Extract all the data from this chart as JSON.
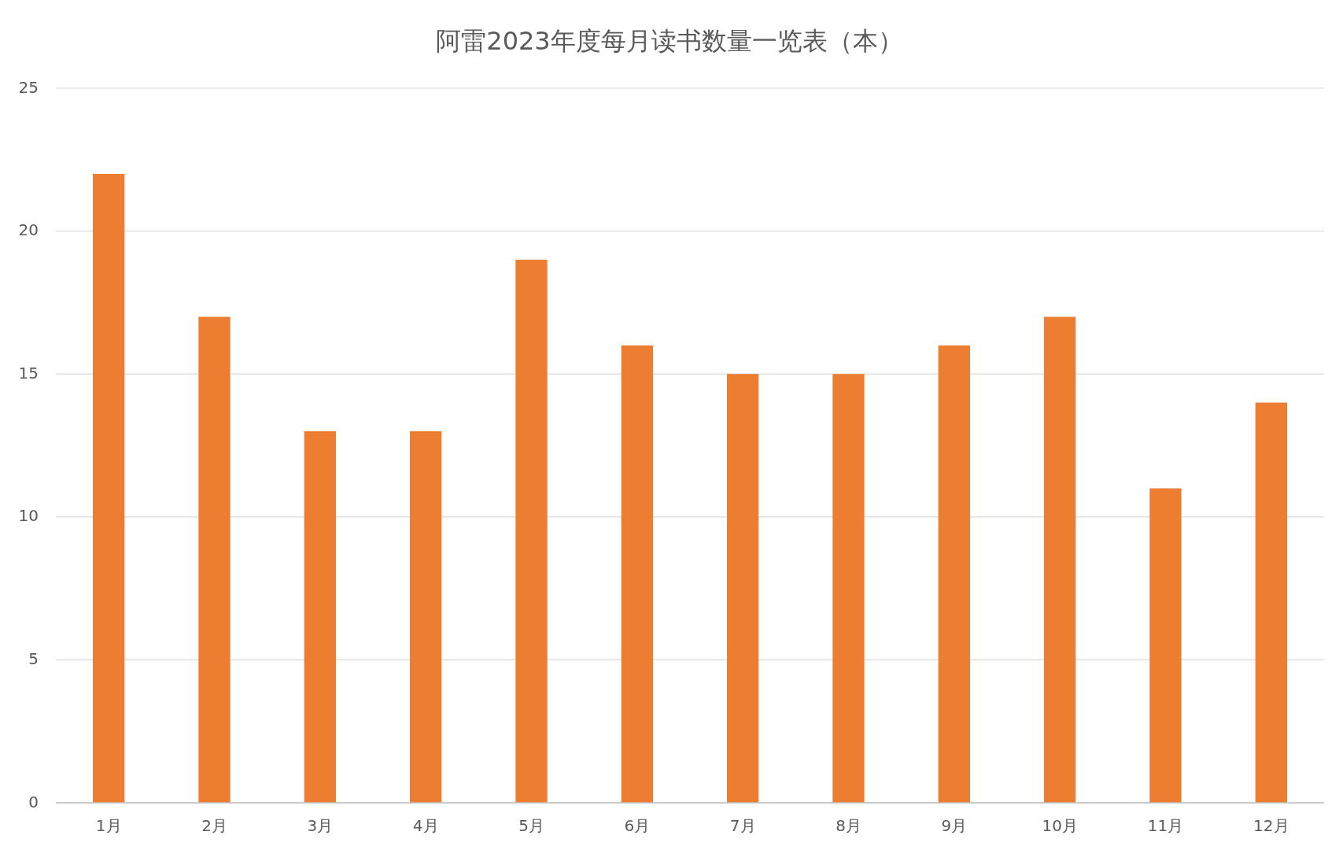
{
  "chart_data": {
    "type": "bar",
    "title": "阿雷2023年度每月读书数量一览表（本）",
    "categories": [
      "1月",
      "2月",
      "3月",
      "4月",
      "5月",
      "6月",
      "7月",
      "8月",
      "9月",
      "10月",
      "11月",
      "12月"
    ],
    "values": [
      22,
      17,
      13,
      13,
      19,
      16,
      15,
      15,
      16,
      17,
      11,
      14
    ],
    "color": "#ed7d31",
    "ylim": [
      0,
      25
    ],
    "yticks": [
      0,
      5,
      10,
      15,
      20,
      25
    ],
    "grid": "y"
  }
}
